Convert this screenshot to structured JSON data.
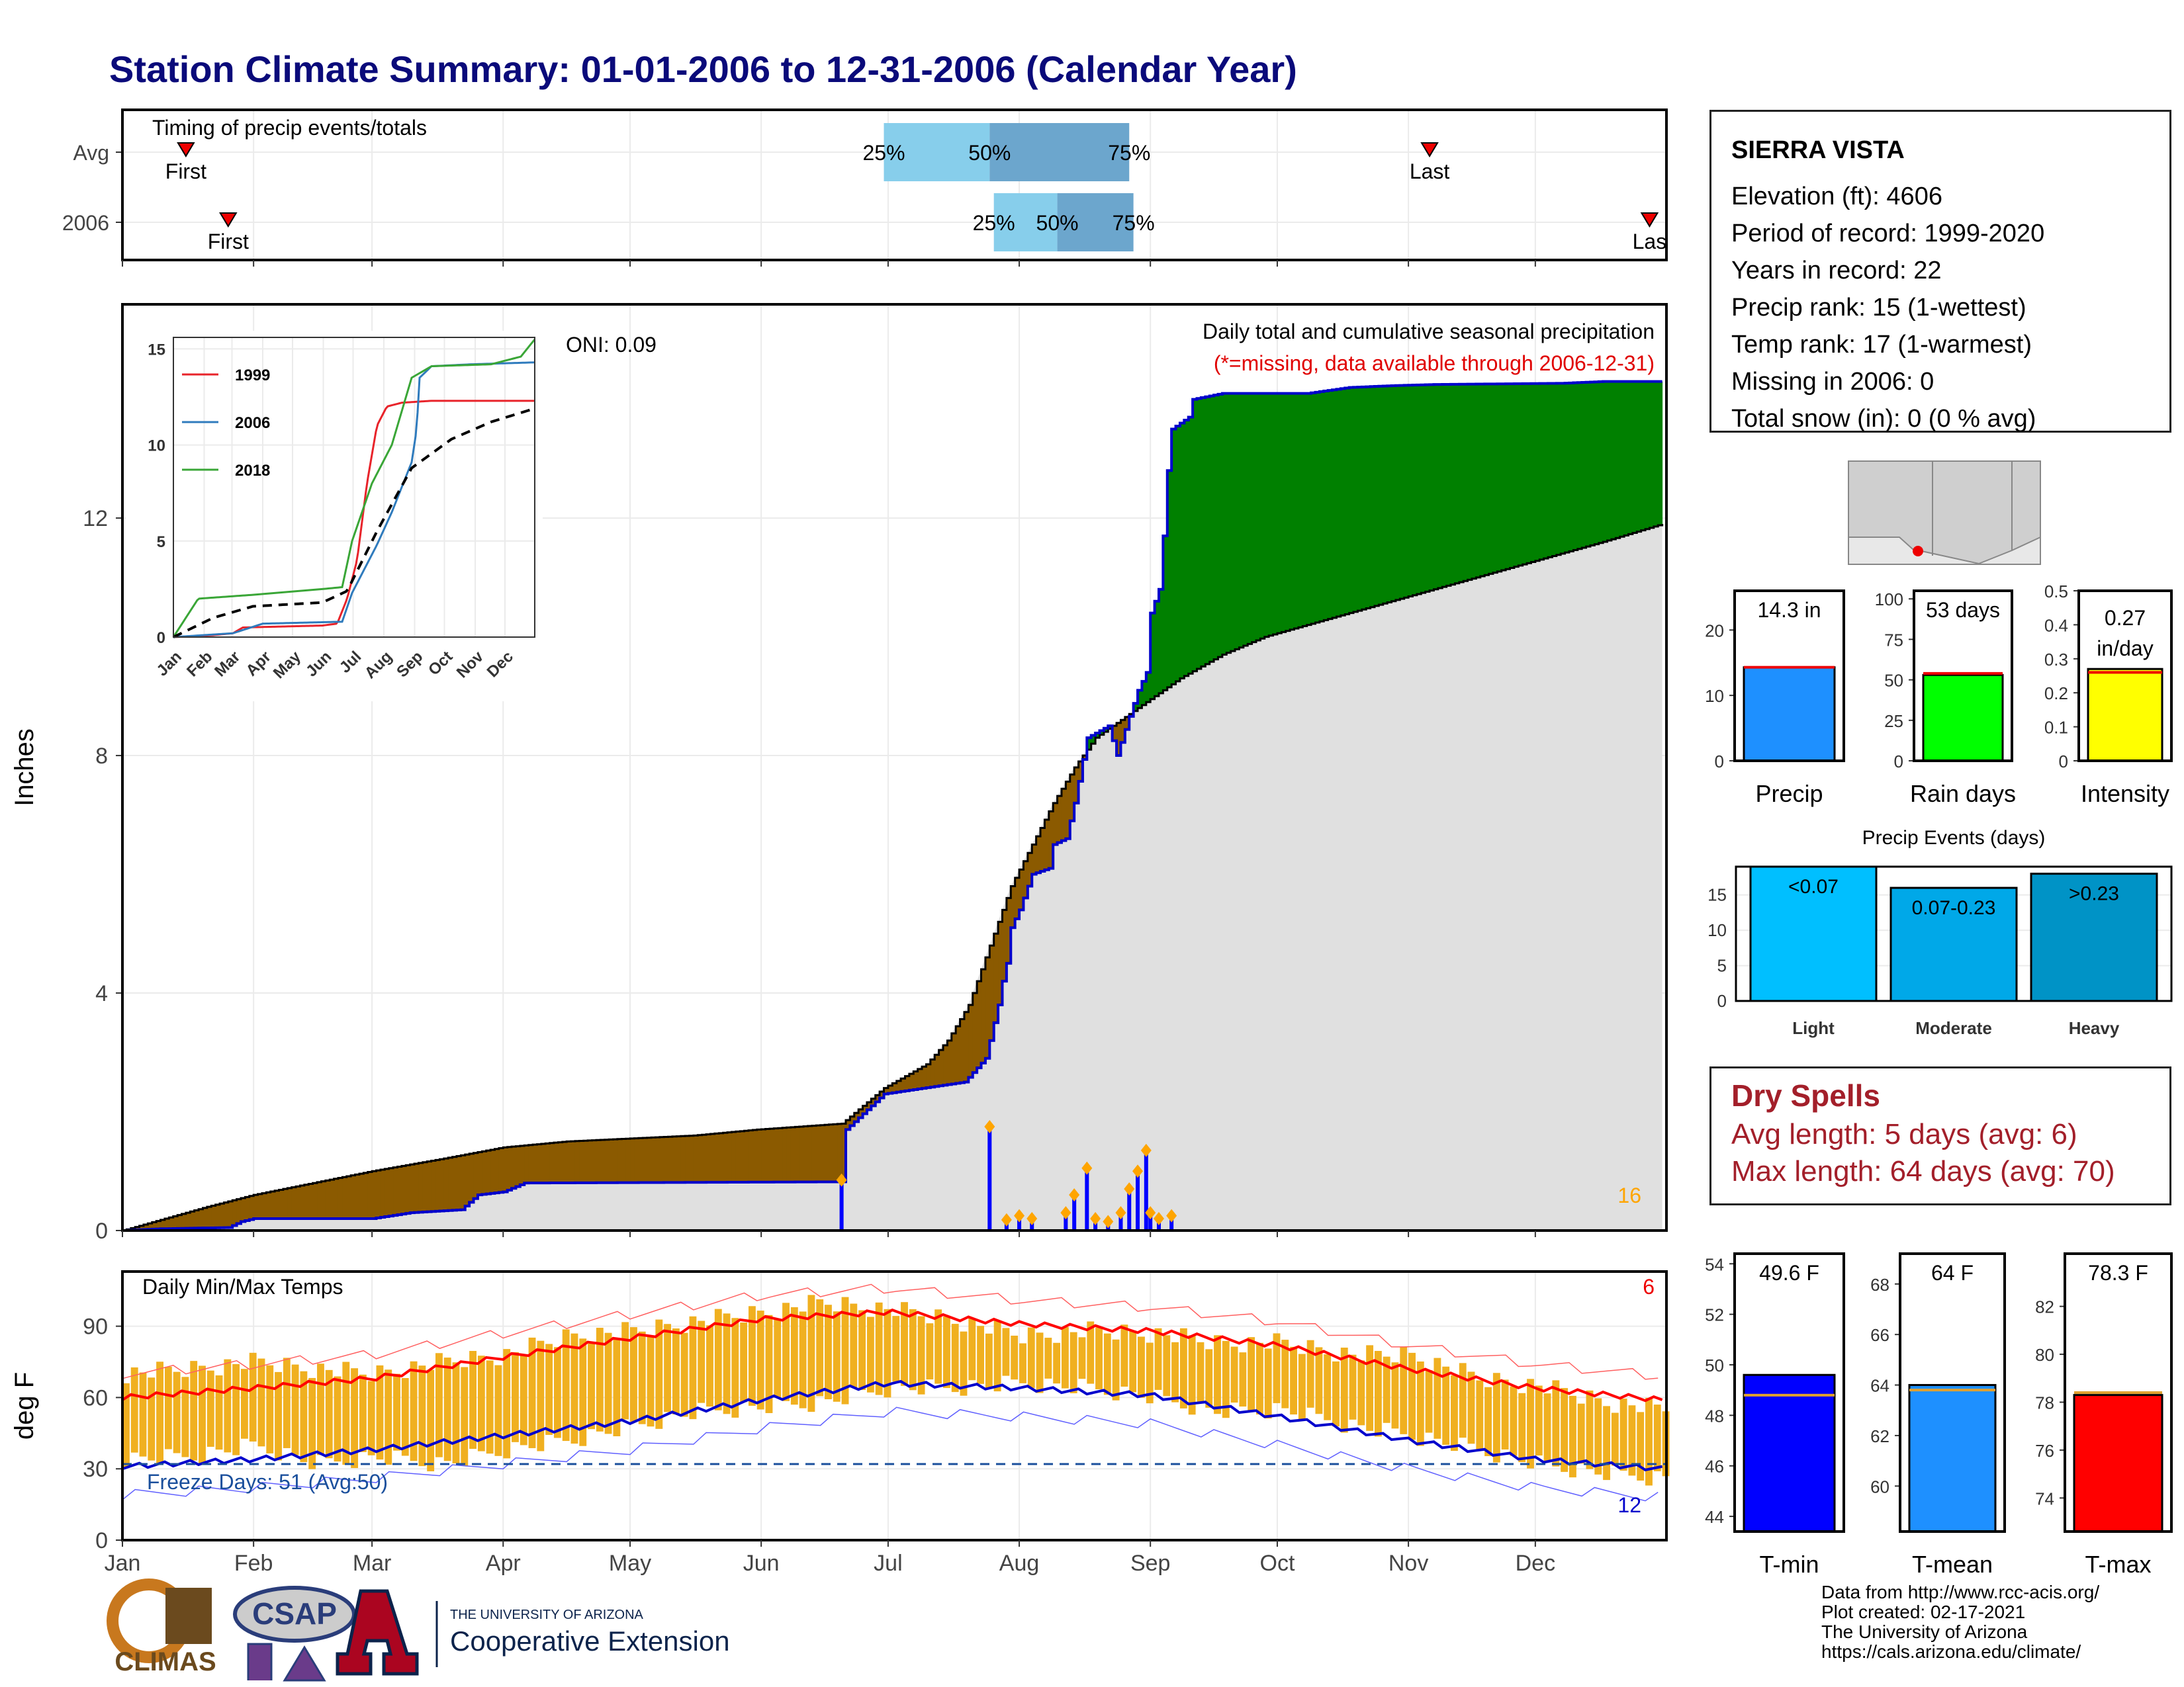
{
  "title": "Station Climate Summary: 01-01-2006 to 12-31-2006 (Calendar Year)",
  "station": {
    "name": "SIERRA VISTA",
    "lines": [
      "Elevation (ft): 4606",
      "Period of record: 1999-2020",
      "Years in record: 22",
      "Precip rank: 15 (1-wettest)",
      "Temp rank: 17 (1-warmest)",
      "Missing in 2006: 0",
      "Total snow (in): 0 (0 % avg)"
    ]
  },
  "dry_spells": {
    "title": "Dry Spells",
    "avg": "Avg length: 5 days (avg: 6)",
    "max": "Max length: 64 days (avg: 70)"
  },
  "footer": {
    "lines": [
      "Data from http://www.rcc-acis.org/",
      "Plot created: 02-17-2021",
      "The University of Arizona",
      "https://cals.arizona.edu/climate/"
    ],
    "logos": [
      "CLIMAS",
      "CSAP",
      "THE UNIVERSITY OF ARIZONA",
      "Cooperative Extension"
    ]
  },
  "colors": {
    "title": "#0a0a7a",
    "avg_fill": "#e0e0e0",
    "above_avg": "#008000",
    "below_avg": "#8b5a00",
    "daily_bar": "#0000ff",
    "temp_band": "#f0b020",
    "tmax": "#ff0000",
    "tmin": "#0000cc"
  },
  "chart_data": [
    {
      "type": "bar",
      "name": "timing",
      "title": "Timing of precip events/totals",
      "rows": [
        "Avg",
        "2006"
      ],
      "months": [
        "Jan",
        "Feb",
        "Mar",
        "Apr",
        "May",
        "Jun",
        "Jul",
        "Aug",
        "Sep",
        "Oct",
        "Nov",
        "Dec"
      ],
      "avg": {
        "first": "01-16",
        "p25": "06-30",
        "p50": "07-25",
        "p75": "08-27",
        "last": "11-06"
      },
      "y2006": {
        "first": "01-26",
        "p25": "07-26",
        "p50": "08-10",
        "p75": "08-28",
        "last": "12-28"
      },
      "labels": {
        "first": "First",
        "last": "Last",
        "last_2006": "Las",
        "p25": "25%",
        "p50": "50%",
        "p75": "75%"
      }
    },
    {
      "type": "area",
      "name": "cumulative-precip",
      "title": "Daily total and cumulative seasonal precipitation",
      "subtitle": "(*=missing, data available through 2006-12-31)",
      "oni": "ONI: 0.09",
      "ylabel": "Inches",
      "yticks": [
        0,
        4,
        8,
        12
      ],
      "ylim": [
        0,
        15.6
      ],
      "x_months": [
        "Jan",
        "Feb",
        "Mar",
        "Apr",
        "May",
        "Jun",
        "Jul",
        "Aug",
        "Sep",
        "Oct",
        "Nov",
        "Dec"
      ],
      "cum_2006": [
        [
          0,
          0
        ],
        [
          9,
          0.03
        ],
        [
          25,
          0.05
        ],
        [
          28,
          0.15
        ],
        [
          31,
          0.2
        ],
        [
          59,
          0.2
        ],
        [
          68,
          0.3
        ],
        [
          80,
          0.35
        ],
        [
          84,
          0.6
        ],
        [
          90,
          0.65
        ],
        [
          95,
          0.8
        ],
        [
          170,
          0.82
        ],
        [
          171,
          1.7
        ],
        [
          180,
          2.3
        ],
        [
          199,
          2.5
        ],
        [
          204,
          2.9
        ],
        [
          206,
          3.5
        ],
        [
          207,
          3.8
        ],
        [
          208,
          4.2
        ],
        [
          209,
          4.5
        ],
        [
          210,
          5.1
        ],
        [
          212,
          5.4
        ],
        [
          215,
          6.0
        ],
        [
          219,
          6.1
        ],
        [
          220,
          6.5
        ],
        [
          223,
          6.6
        ],
        [
          225,
          7.2
        ],
        [
          228,
          8.3
        ],
        [
          233,
          8.5
        ],
        [
          235,
          8.0
        ],
        [
          240,
          9.1
        ],
        [
          242,
          9.4
        ],
        [
          243,
          10.4
        ],
        [
          245,
          10.8
        ],
        [
          246,
          11.7
        ],
        [
          247,
          12.8
        ],
        [
          248,
          13.5
        ],
        [
          252,
          13.7
        ],
        [
          253,
          14.0
        ],
        [
          260,
          14.1
        ],
        [
          280,
          14.1
        ],
        [
          290,
          14.2
        ],
        [
          300,
          14.23
        ],
        [
          310,
          14.25
        ],
        [
          340,
          14.27
        ],
        [
          350,
          14.3
        ],
        [
          364,
          14.3
        ]
      ],
      "cum_avg": [
        [
          0,
          0
        ],
        [
          20,
          0.4
        ],
        [
          31,
          0.6
        ],
        [
          45,
          0.8
        ],
        [
          59,
          1.0
        ],
        [
          75,
          1.2
        ],
        [
          90,
          1.4
        ],
        [
          105,
          1.5
        ],
        [
          120,
          1.55
        ],
        [
          135,
          1.6
        ],
        [
          150,
          1.7
        ],
        [
          160,
          1.75
        ],
        [
          170,
          1.8
        ],
        [
          175,
          2.1
        ],
        [
          180,
          2.4
        ],
        [
          190,
          2.8
        ],
        [
          195,
          3.2
        ],
        [
          200,
          3.8
        ],
        [
          205,
          4.8
        ],
        [
          210,
          5.8
        ],
        [
          215,
          6.5
        ],
        [
          220,
          7.2
        ],
        [
          225,
          7.8
        ],
        [
          230,
          8.3
        ],
        [
          240,
          8.8
        ],
        [
          250,
          9.3
        ],
        [
          260,
          9.7
        ],
        [
          270,
          10.0
        ],
        [
          280,
          10.2
        ],
        [
          290,
          10.4
        ],
        [
          300,
          10.6
        ],
        [
          310,
          10.8
        ],
        [
          320,
          11.0
        ],
        [
          330,
          11.2
        ],
        [
          340,
          11.4
        ],
        [
          350,
          11.6
        ],
        [
          364,
          11.9
        ]
      ],
      "daily": [
        [
          170,
          0.85
        ],
        [
          205,
          1.75
        ],
        [
          209,
          0.18
        ],
        [
          212,
          0.25
        ],
        [
          215,
          0.2
        ],
        [
          223,
          0.3
        ],
        [
          225,
          0.6
        ],
        [
          228,
          1.05
        ],
        [
          230,
          0.2
        ],
        [
          233,
          0.15
        ],
        [
          236,
          0.3
        ],
        [
          238,
          0.7
        ],
        [
          240,
          1.0
        ],
        [
          242,
          1.35
        ],
        [
          243,
          0.3
        ],
        [
          245,
          0.2
        ],
        [
          248,
          0.25
        ]
      ],
      "corner_count": "16"
    },
    {
      "type": "line",
      "name": "inset-cumulative",
      "yticks": [
        0,
        5,
        10,
        15
      ],
      "x_months": [
        "Jan",
        "Feb",
        "Mar",
        "Apr",
        "May",
        "Jun",
        "Jul",
        "Aug",
        "Sep",
        "Oct",
        "Nov",
        "Dec"
      ],
      "series": [
        {
          "name": "1999",
          "color": "#e8232a",
          "values": [
            [
              0,
              0
            ],
            [
              40,
              0.1
            ],
            [
              60,
              0.2
            ],
            [
              70,
              0.5
            ],
            [
              150,
              0.6
            ],
            [
              165,
              0.7
            ],
            [
              175,
              2
            ],
            [
              185,
              4
            ],
            [
              195,
              8
            ],
            [
              205,
              11
            ],
            [
              215,
              12
            ],
            [
              230,
              12.2
            ],
            [
              260,
              12.3
            ],
            [
              364,
              12.3
            ]
          ]
        },
        {
          "name": "2006",
          "color": "#2f7bbd",
          "values": [
            [
              0,
              0
            ],
            [
              60,
              0.2
            ],
            [
              90,
              0.7
            ],
            [
              170,
              0.8
            ],
            [
              180,
              2.3
            ],
            [
              205,
              4.8
            ],
            [
              220,
              6.5
            ],
            [
              240,
              9.1
            ],
            [
              245,
              10.8
            ],
            [
              248,
              13.5
            ],
            [
              260,
              14.1
            ],
            [
              300,
              14.2
            ],
            [
              364,
              14.3
            ]
          ]
        },
        {
          "name": "2018",
          "color": "#3aa637",
          "values": [
            [
              0,
              0
            ],
            [
              25,
              2
            ],
            [
              80,
              2.2
            ],
            [
              150,
              2.5
            ],
            [
              170,
              2.6
            ],
            [
              180,
              5
            ],
            [
              200,
              8
            ],
            [
              220,
              10
            ],
            [
              240,
              13.5
            ],
            [
              260,
              14.1
            ],
            [
              320,
              14.2
            ],
            [
              350,
              14.6
            ],
            [
              364,
              15.5
            ]
          ]
        }
      ],
      "avg": [
        [
          0,
          0
        ],
        [
          40,
          1
        ],
        [
          80,
          1.6
        ],
        [
          150,
          1.8
        ],
        [
          175,
          2.4
        ],
        [
          205,
          5.5
        ],
        [
          240,
          8.8
        ],
        [
          280,
          10.3
        ],
        [
          320,
          11.2
        ],
        [
          364,
          11.9
        ]
      ]
    },
    {
      "type": "bar",
      "name": "annual-summary",
      "panels": [
        {
          "label": "Precip",
          "value_text": "14.3 in",
          "value": 14.3,
          "avg": 14.3,
          "yticks": [
            0,
            10,
            20
          ],
          "ylim": [
            0,
            26
          ],
          "color": "#1e90ff"
        },
        {
          "label": "Rain days",
          "value_text": "53 days",
          "value": 53,
          "avg": 54,
          "yticks": [
            0,
            25,
            50,
            75,
            100
          ],
          "ylim": [
            0,
            105
          ],
          "color": "#00ff00"
        },
        {
          "label": "Intensity",
          "value_text_1": "0.27",
          "value_text_2": "in/day",
          "value": 0.27,
          "avg": 0.26,
          "yticks": [
            0.0,
            0.1,
            0.2,
            0.3,
            0.4,
            0.5
          ],
          "ylim": [
            0,
            0.5
          ],
          "color": "#ffff00"
        }
      ]
    },
    {
      "type": "bar",
      "name": "precip-events",
      "title": "Precip Events (days)",
      "categories": [
        "Light",
        "Moderate",
        "Heavy"
      ],
      "bar_labels": [
        "<0.07",
        "0.07-0.23",
        ">0.23"
      ],
      "values": [
        19,
        16,
        18
      ],
      "yticks": [
        0,
        5,
        10,
        15
      ],
      "ylim": [
        0,
        19
      ],
      "colors": [
        "#00bfff",
        "#00a8e8",
        "#0093c6"
      ]
    },
    {
      "type": "area",
      "name": "daily-temps",
      "title": "Daily Min/Max Temps",
      "ylabel": "deg F",
      "yticks": [
        0,
        30,
        60,
        90
      ],
      "ylim": [
        0,
        113
      ],
      "freeze_label": "Freeze Days: 51 (Avg:50)",
      "freeze_line": 32,
      "count_hot": "6",
      "count_cold": "12",
      "x_months": [
        "Jan",
        "Feb",
        "Mar",
        "Apr",
        "May",
        "Jun",
        "Jul",
        "Aug",
        "Sep",
        "Oct",
        "Nov",
        "Dec"
      ],
      "tmax_avg": [
        [
          0,
          60
        ],
        [
          31,
          64
        ],
        [
          59,
          68
        ],
        [
          90,
          77
        ],
        [
          120,
          85
        ],
        [
          151,
          93
        ],
        [
          181,
          96
        ],
        [
          212,
          91
        ],
        [
          243,
          88
        ],
        [
          273,
          82
        ],
        [
          304,
          72
        ],
        [
          334,
          64
        ],
        [
          364,
          59
        ]
      ],
      "tmin_avg": [
        [
          0,
          31
        ],
        [
          31,
          34
        ],
        [
          59,
          38
        ],
        [
          90,
          44
        ],
        [
          120,
          50
        ],
        [
          151,
          59
        ],
        [
          181,
          66
        ],
        [
          212,
          64
        ],
        [
          243,
          61
        ],
        [
          273,
          52
        ],
        [
          304,
          42
        ],
        [
          334,
          34
        ],
        [
          364,
          30
        ]
      ],
      "tmax_2006": [
        [
          0,
          70
        ],
        [
          15,
          72
        ],
        [
          31,
          75
        ],
        [
          45,
          72
        ],
        [
          59,
          70
        ],
        [
          75,
          75
        ],
        [
          90,
          78
        ],
        [
          105,
          86
        ],
        [
          120,
          88
        ],
        [
          135,
          92
        ],
        [
          151,
          96
        ],
        [
          165,
          100
        ],
        [
          181,
          97
        ],
        [
          195,
          93
        ],
        [
          212,
          86
        ],
        [
          228,
          88
        ],
        [
          243,
          87
        ],
        [
          258,
          83
        ],
        [
          273,
          83
        ],
        [
          290,
          78
        ],
        [
          304,
          78
        ],
        [
          320,
          68
        ],
        [
          334,
          65
        ],
        [
          350,
          58
        ],
        [
          364,
          55
        ]
      ],
      "tmin_2006": [
        [
          0,
          34
        ],
        [
          15,
          35
        ],
        [
          31,
          40
        ],
        [
          45,
          32
        ],
        [
          59,
          35
        ],
        [
          75,
          32
        ],
        [
          90,
          38
        ],
        [
          105,
          42
        ],
        [
          120,
          48
        ],
        [
          135,
          54
        ],
        [
          151,
          56
        ],
        [
          165,
          58
        ],
        [
          181,
          64
        ],
        [
          195,
          64
        ],
        [
          212,
          66
        ],
        [
          228,
          64
        ],
        [
          243,
          60
        ],
        [
          258,
          54
        ],
        [
          273,
          55
        ],
        [
          290,
          48
        ],
        [
          304,
          44
        ],
        [
          320,
          38
        ],
        [
          334,
          32
        ],
        [
          350,
          28
        ],
        [
          364,
          26
        ]
      ]
    },
    {
      "type": "bar",
      "name": "temp-summary",
      "panels": [
        {
          "label": "T-min",
          "value_text": "49.6 F",
          "value": 49.6,
          "avg": 48.8,
          "yticks": [
            44,
            46,
            48,
            50,
            52,
            54
          ],
          "ylim": [
            43.4,
            54.4
          ],
          "color": "#0000ff"
        },
        {
          "label": "T-mean",
          "value_text": "64 F",
          "value": 64.0,
          "avg": 63.8,
          "yticks": [
            60,
            62,
            64,
            66,
            68
          ],
          "ylim": [
            58.2,
            69.2
          ],
          "color": "#1e90ff"
        },
        {
          "label": "T-max",
          "value_text": "78.3 F",
          "value": 78.3,
          "avg": 78.4,
          "yticks": [
            74,
            76,
            78,
            80,
            82
          ],
          "ylim": [
            72.6,
            84.2
          ],
          "color": "#ff0000"
        }
      ]
    }
  ]
}
